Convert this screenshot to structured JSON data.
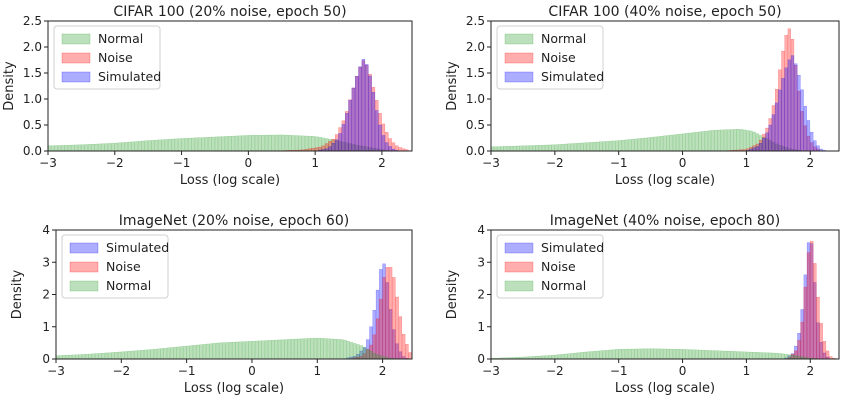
{
  "chart_data": [
    {
      "type": "histogram",
      "title": "CIFAR 100 (20% noise, epoch 50)",
      "xlabel": "Loss (log scale)",
      "ylabel": "Density",
      "xlim": [
        -3,
        2.45
      ],
      "ylim": [
        0,
        2.5
      ],
      "xticks": [
        "-3",
        "-2",
        "-1",
        "0",
        "1",
        "2"
      ],
      "yticks": [
        "0.0",
        "0.5",
        "1.0",
        "1.5",
        "2.0",
        "2.5"
      ],
      "legend_position": "top-left",
      "series": [
        {
          "name": "Normal",
          "color": "#2ca02c",
          "points": [
            [
              -3.0,
              0.1
            ],
            [
              -2.5,
              0.12
            ],
            [
              -2.0,
              0.15
            ],
            [
              -1.5,
              0.2
            ],
            [
              -1.0,
              0.24
            ],
            [
              -0.5,
              0.27
            ],
            [
              0.0,
              0.3
            ],
            [
              0.5,
              0.31
            ],
            [
              1.0,
              0.28
            ],
            [
              1.3,
              0.21
            ],
            [
              1.6,
              0.12
            ],
            [
              1.9,
              0.05
            ],
            [
              2.1,
              0.01
            ],
            [
              2.3,
              0.0
            ]
          ]
        },
        {
          "name": "Noise",
          "color": "#ff0000",
          "points": [
            [
              0.3,
              0.0
            ],
            [
              0.8,
              0.02
            ],
            [
              1.1,
              0.08
            ],
            [
              1.3,
              0.25
            ],
            [
              1.45,
              0.65
            ],
            [
              1.55,
              1.1
            ],
            [
              1.65,
              1.55
            ],
            [
              1.73,
              1.75
            ],
            [
              1.8,
              1.6
            ],
            [
              1.9,
              1.1
            ],
            [
              2.0,
              0.6
            ],
            [
              2.1,
              0.28
            ],
            [
              2.2,
              0.12
            ],
            [
              2.3,
              0.05
            ],
            [
              2.4,
              0.02
            ]
          ]
        },
        {
          "name": "Simulated",
          "color": "#0000ff",
          "points": [
            [
              1.0,
              0.0
            ],
            [
              1.2,
              0.05
            ],
            [
              1.35,
              0.25
            ],
            [
              1.45,
              0.6
            ],
            [
              1.55,
              1.1
            ],
            [
              1.65,
              1.55
            ],
            [
              1.73,
              1.78
            ],
            [
              1.8,
              1.6
            ],
            [
              1.88,
              1.1
            ],
            [
              1.95,
              0.6
            ],
            [
              2.05,
              0.2
            ],
            [
              2.15,
              0.05
            ],
            [
              2.25,
              0.0
            ]
          ]
        }
      ]
    },
    {
      "type": "histogram",
      "title": "CIFAR 100 (40% noise, epoch 50)",
      "xlabel": "Loss (log scale)",
      "ylabel": "Density",
      "xlim": [
        -3,
        2.45
      ],
      "ylim": [
        0,
        2.5
      ],
      "xticks": [
        "-3",
        "-2",
        "-1",
        "0",
        "1",
        "2"
      ],
      "yticks": [
        "0.0",
        "0.5",
        "1.0",
        "1.5",
        "2.0",
        "2.5"
      ],
      "legend_position": "top-left",
      "series": [
        {
          "name": "Normal",
          "color": "#2ca02c",
          "points": [
            [
              -3.0,
              0.08
            ],
            [
              -2.5,
              0.1
            ],
            [
              -2.0,
              0.12
            ],
            [
              -1.5,
              0.16
            ],
            [
              -1.0,
              0.2
            ],
            [
              -0.5,
              0.26
            ],
            [
              0.0,
              0.33
            ],
            [
              0.5,
              0.4
            ],
            [
              0.9,
              0.42
            ],
            [
              1.1,
              0.38
            ],
            [
              1.3,
              0.25
            ],
            [
              1.5,
              0.12
            ],
            [
              1.7,
              0.04
            ],
            [
              1.9,
              0.0
            ]
          ]
        },
        {
          "name": "Noise",
          "color": "#ff0000",
          "points": [
            [
              0.6,
              0.0
            ],
            [
              1.0,
              0.03
            ],
            [
              1.2,
              0.15
            ],
            [
              1.35,
              0.5
            ],
            [
              1.45,
              1.0
            ],
            [
              1.53,
              1.6
            ],
            [
              1.6,
              2.1
            ],
            [
              1.66,
              2.4
            ],
            [
              1.72,
              2.2
            ],
            [
              1.78,
              1.6
            ],
            [
              1.85,
              0.9
            ],
            [
              1.95,
              0.35
            ],
            [
              2.05,
              0.1
            ],
            [
              2.15,
              0.02
            ]
          ]
        },
        {
          "name": "Simulated",
          "color": "#0000ff",
          "points": [
            [
              1.0,
              0.0
            ],
            [
              1.2,
              0.1
            ],
            [
              1.35,
              0.4
            ],
            [
              1.45,
              0.8
            ],
            [
              1.55,
              1.3
            ],
            [
              1.65,
              1.7
            ],
            [
              1.72,
              1.85
            ],
            [
              1.8,
              1.6
            ],
            [
              1.88,
              1.15
            ],
            [
              1.95,
              0.7
            ],
            [
              2.05,
              0.25
            ],
            [
              2.15,
              0.05
            ],
            [
              2.25,
              0.0
            ]
          ]
        }
      ]
    },
    {
      "type": "histogram",
      "title": "ImageNet (20% noise, epoch 60)",
      "xlabel": "Loss (log scale)",
      "ylabel": "Density",
      "xlim": [
        -3,
        2.45
      ],
      "ylim": [
        0,
        4
      ],
      "xticks": [
        "-3",
        "-2",
        "-1",
        "0",
        "1",
        "2"
      ],
      "yticks": [
        "0",
        "1",
        "2",
        "3",
        "4"
      ],
      "legend_position": "top-left",
      "series": [
        {
          "name": "Simulated",
          "color": "#0000ff",
          "points": [
            [
              1.4,
              0.0
            ],
            [
              1.6,
              0.1
            ],
            [
              1.75,
              0.4
            ],
            [
              1.85,
              1.2
            ],
            [
              1.93,
              2.2
            ],
            [
              2.0,
              3.1
            ],
            [
              2.05,
              2.8
            ],
            [
              2.12,
              1.6
            ],
            [
              2.2,
              0.6
            ],
            [
              2.3,
              0.1
            ],
            [
              2.4,
              0.0
            ]
          ]
        },
        {
          "name": "Noise",
          "color": "#ff0000",
          "points": [
            [
              1.5,
              0.0
            ],
            [
              1.7,
              0.1
            ],
            [
              1.85,
              0.5
            ],
            [
              1.95,
              1.5
            ],
            [
              2.02,
              2.5
            ],
            [
              2.1,
              3.0
            ],
            [
              2.18,
              2.5
            ],
            [
              2.25,
              1.6
            ],
            [
              2.32,
              0.8
            ],
            [
              2.4,
              0.3
            ],
            [
              2.45,
              0.1
            ]
          ]
        },
        {
          "name": "Normal",
          "color": "#2ca02c",
          "points": [
            [
              -3.0,
              0.1
            ],
            [
              -2.5,
              0.15
            ],
            [
              -2.0,
              0.22
            ],
            [
              -1.5,
              0.3
            ],
            [
              -1.0,
              0.4
            ],
            [
              -0.5,
              0.5
            ],
            [
              0.0,
              0.55
            ],
            [
              0.5,
              0.6
            ],
            [
              1.0,
              0.65
            ],
            [
              1.4,
              0.6
            ],
            [
              1.7,
              0.4
            ],
            [
              1.9,
              0.15
            ],
            [
              2.1,
              0.03
            ],
            [
              2.3,
              0.0
            ]
          ]
        }
      ]
    },
    {
      "type": "histogram",
      "title": "ImageNet (40% noise, epoch 80)",
      "xlabel": "Loss (log scale)",
      "ylabel": "Density",
      "xlim": [
        -3,
        2.45
      ],
      "ylim": [
        0,
        4
      ],
      "xticks": [
        "-3",
        "-2",
        "-1",
        "0",
        "1",
        "2"
      ],
      "yticks": [
        "0",
        "1",
        "2",
        "3",
        "4"
      ],
      "legend_position": "top-left",
      "series": [
        {
          "name": "Simulated",
          "color": "#0000ff",
          "points": [
            [
              1.6,
              0.0
            ],
            [
              1.75,
              0.2
            ],
            [
              1.85,
              1.0
            ],
            [
              1.92,
              2.5
            ],
            [
              1.97,
              3.6
            ],
            [
              2.02,
              3.7
            ],
            [
              2.07,
              2.5
            ],
            [
              2.13,
              1.0
            ],
            [
              2.2,
              0.25
            ],
            [
              2.3,
              0.0
            ]
          ]
        },
        {
          "name": "Noise",
          "color": "#ff0000",
          "points": [
            [
              1.65,
              0.0
            ],
            [
              1.8,
              0.3
            ],
            [
              1.88,
              1.2
            ],
            [
              1.95,
              2.8
            ],
            [
              2.0,
              3.8
            ],
            [
              2.05,
              3.5
            ],
            [
              2.12,
              2.0
            ],
            [
              2.2,
              0.7
            ],
            [
              2.3,
              0.1
            ],
            [
              2.4,
              0.0
            ]
          ]
        },
        {
          "name": "Normal",
          "color": "#2ca02c",
          "points": [
            [
              -3.0,
              0.02
            ],
            [
              -2.5,
              0.06
            ],
            [
              -2.0,
              0.12
            ],
            [
              -1.5,
              0.22
            ],
            [
              -1.0,
              0.3
            ],
            [
              -0.5,
              0.32
            ],
            [
              0.0,
              0.3
            ],
            [
              0.5,
              0.26
            ],
            [
              1.0,
              0.22
            ],
            [
              1.5,
              0.18
            ],
            [
              1.8,
              0.1
            ],
            [
              2.0,
              0.03
            ],
            [
              2.2,
              0.0
            ]
          ]
        }
      ]
    }
  ]
}
